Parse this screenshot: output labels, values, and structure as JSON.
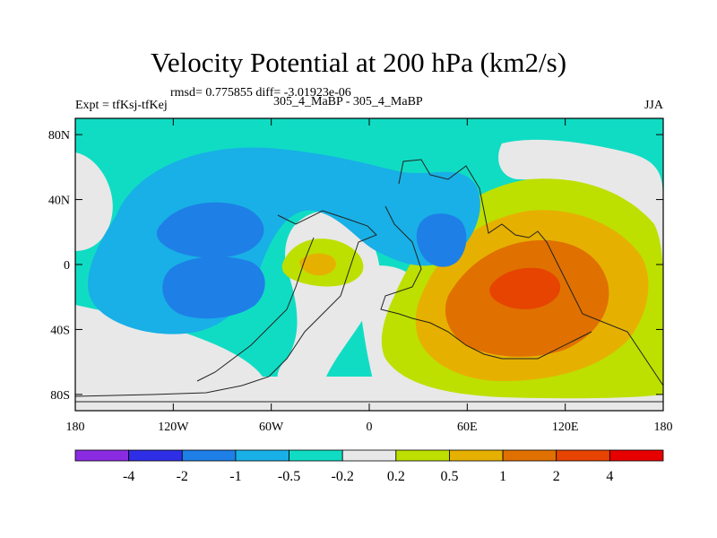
{
  "chart_data": {
    "type": "heatmap",
    "title": "Velocity Potential at 200 hPa (km2/s)",
    "subtitle_stats": "rmsd= 0.775855  diff= -3.01923e-06",
    "subtitle_left": "Expt = tfKsj-tfKej",
    "subtitle_center": "305_4_MaBP - 305_4_MaBP",
    "subtitle_right": "JJA",
    "x_ticks": [
      "180",
      "120W",
      "60W",
      "0",
      "60E",
      "120E",
      "180"
    ],
    "y_ticks": [
      "80N",
      "40N",
      "0",
      "40S",
      "80S"
    ],
    "x_range": [
      -180,
      180
    ],
    "y_range": [
      -90,
      90
    ],
    "colorbar_levels": [
      "-4",
      "-2",
      "-1",
      "-0.5",
      "-0.2",
      "0.2",
      "0.5",
      "1",
      "2",
      "4"
    ],
    "colorbar_colors": [
      "#8a2be2",
      "#2e2ee6",
      "#1e7fe6",
      "#18b0e6",
      "#10dcc4",
      "#e8e8e8",
      "#bde000",
      "#e6b000",
      "#e07000",
      "#e64400",
      "#e60000"
    ],
    "regions": [
      {
        "name": "negative high-latitude band",
        "level": -0.2
      },
      {
        "name": "negative western hemisphere center",
        "level": -1.0
      },
      {
        "name": "positive eastern hemisphere center",
        "level": 2.0
      },
      {
        "name": "weak positive south america",
        "level": 0.5
      }
    ]
  }
}
